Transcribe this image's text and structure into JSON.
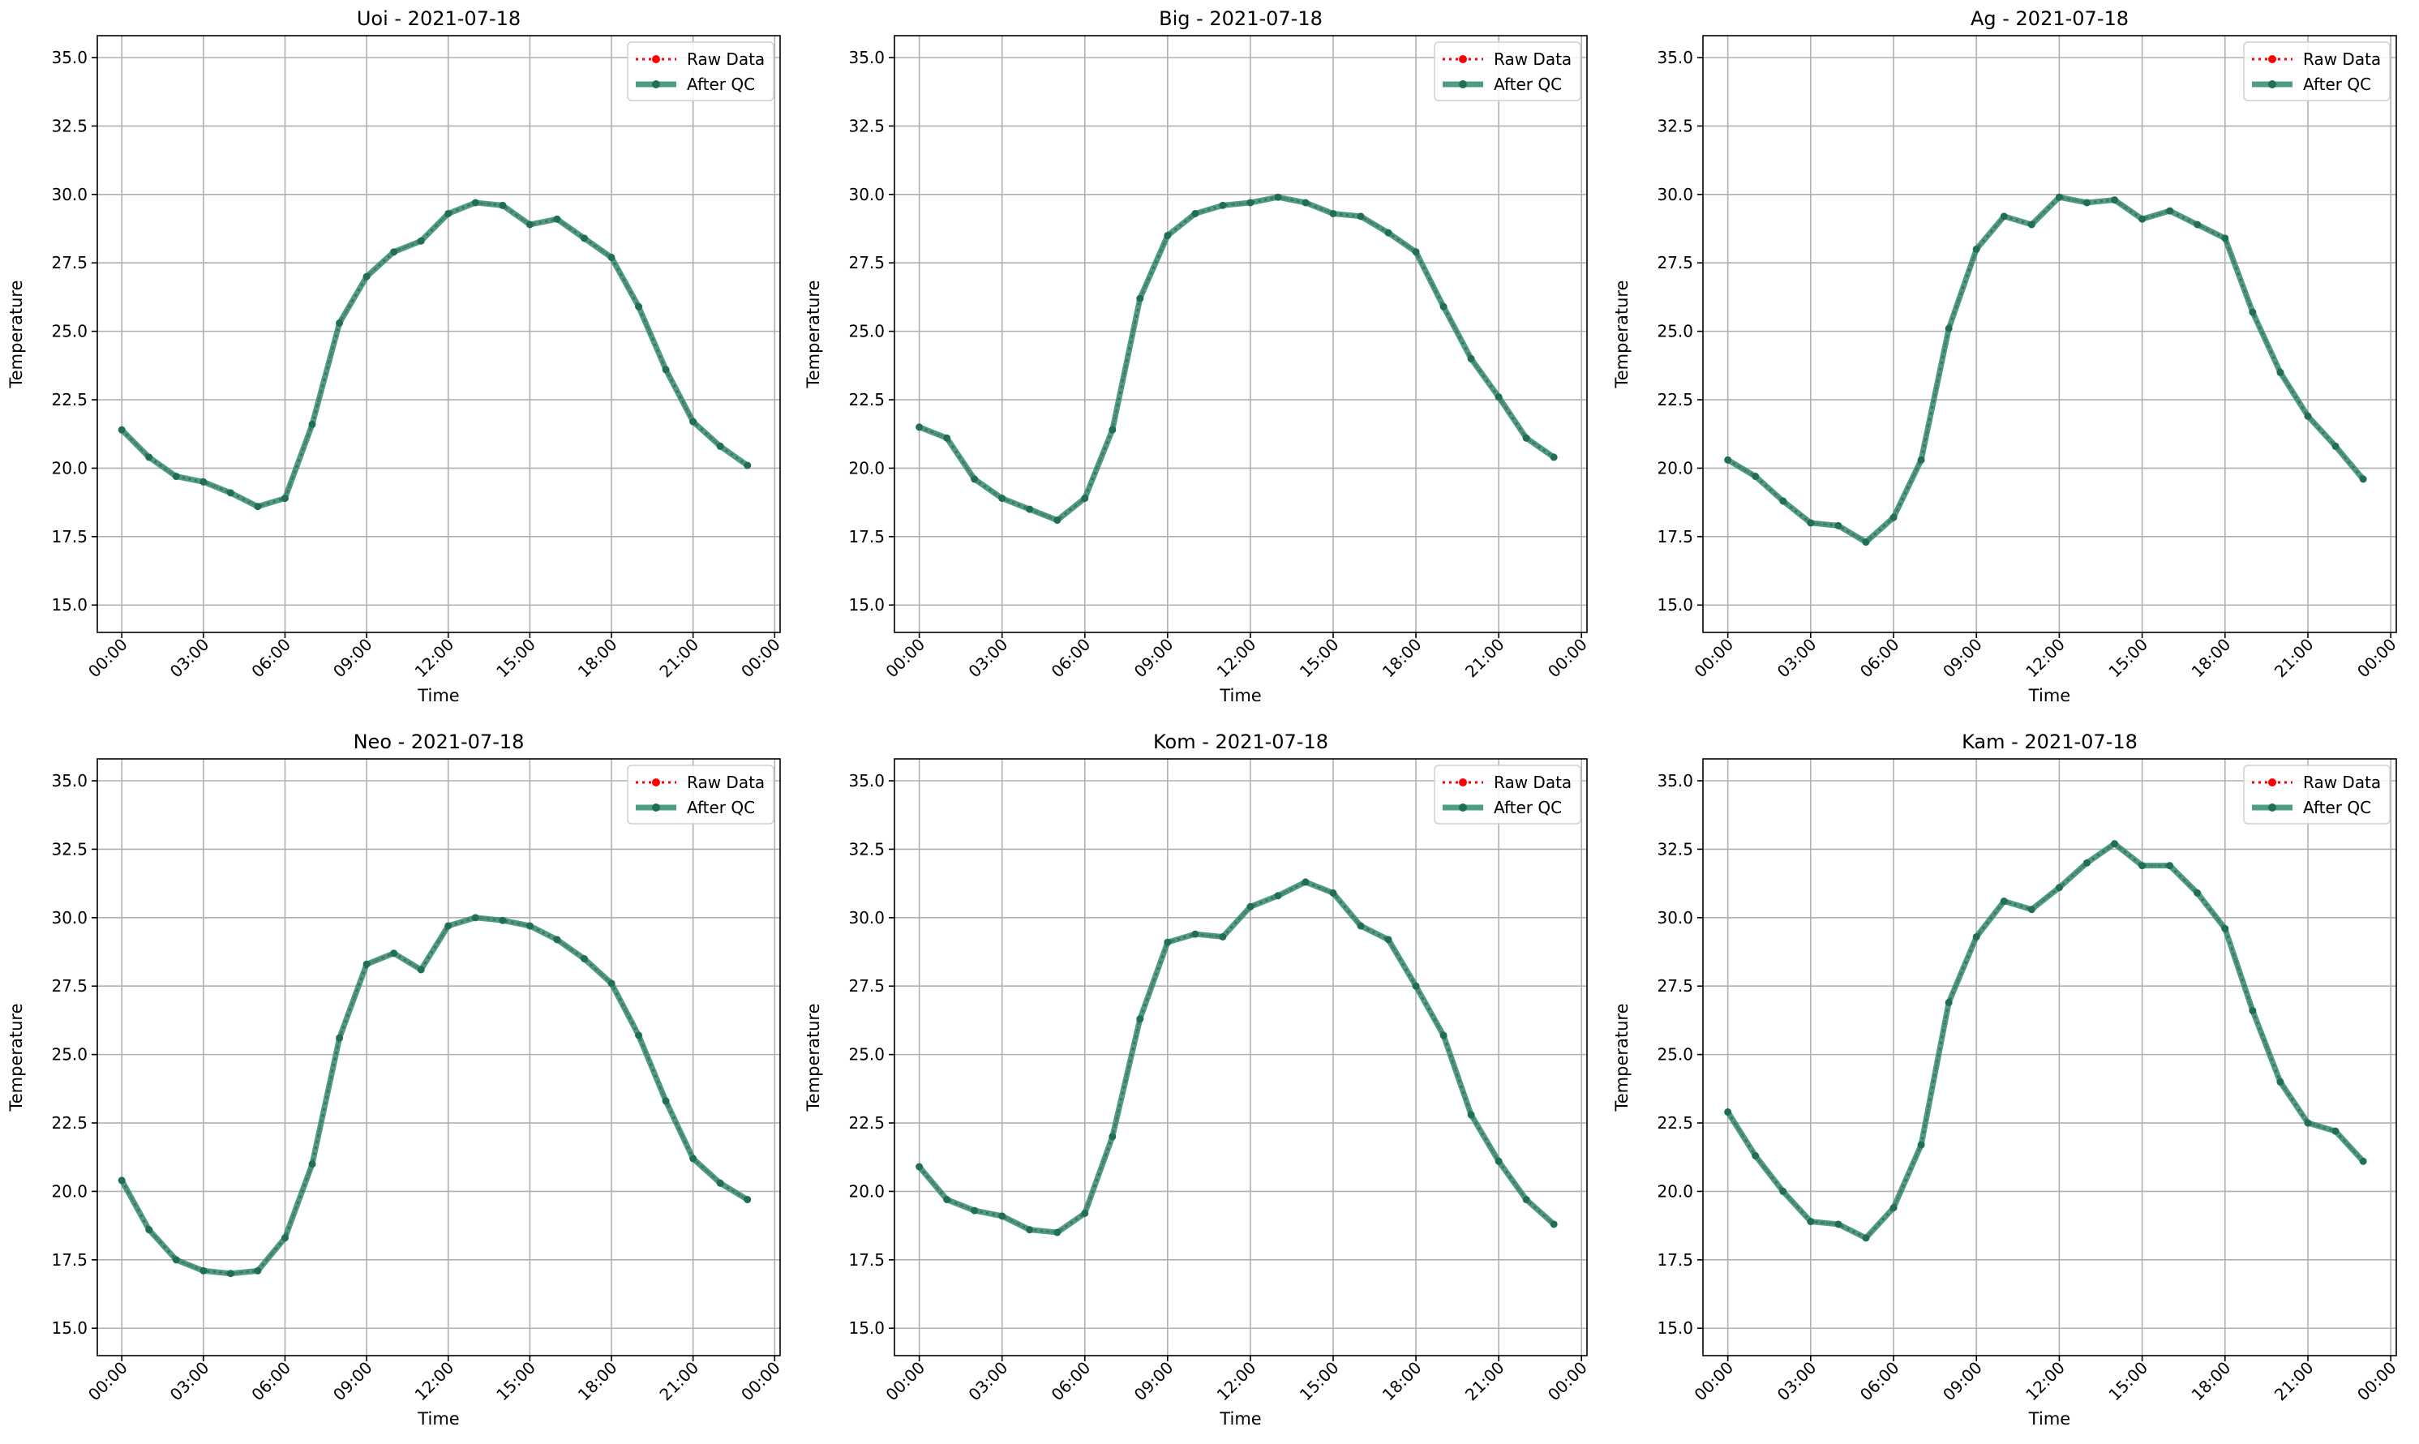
{
  "figure": {
    "legend": {
      "raw_label": "Raw Data",
      "qc_label": "After QC",
      "raw_color": "#ff0000",
      "qc_color": "#2e8b6e",
      "placement": "upper right"
    },
    "grid": true
  },
  "chart_data": [
    {
      "type": "line",
      "title": "Uoi - 2021-07-18",
      "xlabel": "Time",
      "ylabel": "Temperature",
      "x": [
        "00:00",
        "01:00",
        "02:00",
        "03:00",
        "04:00",
        "05:00",
        "06:00",
        "07:00",
        "08:00",
        "09:00",
        "10:00",
        "11:00",
        "12:00",
        "13:00",
        "14:00",
        "15:00",
        "16:00",
        "17:00",
        "18:00",
        "19:00",
        "20:00",
        "21:00",
        "22:00",
        "23:00"
      ],
      "xticks": [
        "00:00",
        "03:00",
        "06:00",
        "09:00",
        "12:00",
        "15:00",
        "18:00",
        "21:00",
        "00:00"
      ],
      "yticks": [
        "15.0",
        "17.5",
        "20.0",
        "22.5",
        "25.0",
        "27.5",
        "30.0",
        "32.5",
        "35.0"
      ],
      "ylim": [
        14.0,
        35.8
      ],
      "series": [
        {
          "name": "Raw Data",
          "values": [
            21.4,
            20.4,
            19.7,
            19.5,
            19.1,
            18.6,
            18.9,
            21.6,
            25.3,
            27.0,
            27.9,
            28.3,
            29.3,
            29.7,
            29.6,
            28.9,
            29.1,
            28.4,
            27.7,
            25.9,
            23.6,
            21.7,
            20.8,
            20.1
          ]
        },
        {
          "name": "After QC",
          "values": [
            21.4,
            20.4,
            19.7,
            19.5,
            19.1,
            18.6,
            18.9,
            21.6,
            25.3,
            27.0,
            27.9,
            28.3,
            29.3,
            29.7,
            29.6,
            28.9,
            29.1,
            28.4,
            27.7,
            25.9,
            23.6,
            21.7,
            20.8,
            20.1
          ]
        }
      ]
    },
    {
      "type": "line",
      "title": "Big - 2021-07-18",
      "xlabel": "Time",
      "ylabel": "Temperature",
      "x": [
        "00:00",
        "01:00",
        "02:00",
        "03:00",
        "04:00",
        "05:00",
        "06:00",
        "07:00",
        "08:00",
        "09:00",
        "10:00",
        "11:00",
        "12:00",
        "13:00",
        "14:00",
        "15:00",
        "16:00",
        "17:00",
        "18:00",
        "19:00",
        "20:00",
        "21:00",
        "22:00",
        "23:00"
      ],
      "xticks": [
        "00:00",
        "03:00",
        "06:00",
        "09:00",
        "12:00",
        "15:00",
        "18:00",
        "21:00",
        "00:00"
      ],
      "yticks": [
        "15.0",
        "17.5",
        "20.0",
        "22.5",
        "25.0",
        "27.5",
        "30.0",
        "32.5",
        "35.0"
      ],
      "ylim": [
        14.0,
        35.8
      ],
      "series": [
        {
          "name": "Raw Data",
          "values": [
            21.5,
            21.1,
            19.6,
            18.9,
            18.5,
            18.1,
            18.9,
            21.4,
            26.2,
            28.5,
            29.3,
            29.6,
            29.7,
            29.9,
            29.7,
            29.3,
            29.2,
            28.6,
            27.9,
            25.9,
            24.0,
            22.6,
            21.1,
            20.4
          ]
        },
        {
          "name": "After QC",
          "values": [
            21.5,
            21.1,
            19.6,
            18.9,
            18.5,
            18.1,
            18.9,
            21.4,
            26.2,
            28.5,
            29.3,
            29.6,
            29.7,
            29.9,
            29.7,
            29.3,
            29.2,
            28.6,
            27.9,
            25.9,
            24.0,
            22.6,
            21.1,
            20.4
          ]
        }
      ]
    },
    {
      "type": "line",
      "title": "Ag - 2021-07-18",
      "xlabel": "Time",
      "ylabel": "Temperature",
      "x": [
        "00:00",
        "01:00",
        "02:00",
        "03:00",
        "04:00",
        "05:00",
        "06:00",
        "07:00",
        "08:00",
        "09:00",
        "10:00",
        "11:00",
        "12:00",
        "13:00",
        "14:00",
        "15:00",
        "16:00",
        "17:00",
        "18:00",
        "19:00",
        "20:00",
        "21:00",
        "22:00",
        "23:00"
      ],
      "xticks": [
        "00:00",
        "03:00",
        "06:00",
        "09:00",
        "12:00",
        "15:00",
        "18:00",
        "21:00",
        "00:00"
      ],
      "yticks": [
        "15.0",
        "17.5",
        "20.0",
        "22.5",
        "25.0",
        "27.5",
        "30.0",
        "32.5",
        "35.0"
      ],
      "ylim": [
        14.0,
        35.8
      ],
      "series": [
        {
          "name": "Raw Data",
          "values": [
            20.3,
            19.7,
            18.8,
            18.0,
            17.9,
            17.3,
            18.2,
            20.3,
            25.1,
            28.0,
            29.2,
            28.9,
            29.9,
            29.7,
            29.8,
            29.1,
            29.4,
            28.9,
            28.4,
            25.7,
            23.5,
            21.9,
            20.8,
            19.6
          ]
        },
        {
          "name": "After QC",
          "values": [
            20.3,
            19.7,
            18.8,
            18.0,
            17.9,
            17.3,
            18.2,
            20.3,
            25.1,
            28.0,
            29.2,
            28.9,
            29.9,
            29.7,
            29.8,
            29.1,
            29.4,
            28.9,
            28.4,
            25.7,
            23.5,
            21.9,
            20.8,
            19.6
          ]
        }
      ]
    },
    {
      "type": "line",
      "title": "Neo - 2021-07-18",
      "xlabel": "Time",
      "ylabel": "Temperature",
      "x": [
        "00:00",
        "01:00",
        "02:00",
        "03:00",
        "04:00",
        "05:00",
        "06:00",
        "07:00",
        "08:00",
        "09:00",
        "10:00",
        "11:00",
        "12:00",
        "13:00",
        "14:00",
        "15:00",
        "16:00",
        "17:00",
        "18:00",
        "19:00",
        "20:00",
        "21:00",
        "22:00",
        "23:00"
      ],
      "xticks": [
        "00:00",
        "03:00",
        "06:00",
        "09:00",
        "12:00",
        "15:00",
        "18:00",
        "21:00",
        "00:00"
      ],
      "yticks": [
        "15.0",
        "17.5",
        "20.0",
        "22.5",
        "25.0",
        "27.5",
        "30.0",
        "32.5",
        "35.0"
      ],
      "ylim": [
        14.0,
        35.8
      ],
      "series": [
        {
          "name": "Raw Data",
          "values": [
            20.4,
            18.6,
            17.5,
            17.1,
            17.0,
            17.1,
            18.3,
            21.0,
            25.6,
            28.3,
            28.7,
            28.1,
            29.7,
            30.0,
            29.9,
            29.7,
            29.2,
            28.5,
            27.6,
            25.7,
            23.3,
            21.2,
            20.3,
            19.7
          ]
        },
        {
          "name": "After QC",
          "values": [
            20.4,
            18.6,
            17.5,
            17.1,
            17.0,
            17.1,
            18.3,
            21.0,
            25.6,
            28.3,
            28.7,
            28.1,
            29.7,
            30.0,
            29.9,
            29.7,
            29.2,
            28.5,
            27.6,
            25.7,
            23.3,
            21.2,
            20.3,
            19.7
          ]
        }
      ]
    },
    {
      "type": "line",
      "title": "Kom - 2021-07-18",
      "xlabel": "Time",
      "ylabel": "Temperature",
      "x": [
        "00:00",
        "01:00",
        "02:00",
        "03:00",
        "04:00",
        "05:00",
        "06:00",
        "07:00",
        "08:00",
        "09:00",
        "10:00",
        "11:00",
        "12:00",
        "13:00",
        "14:00",
        "15:00",
        "16:00",
        "17:00",
        "18:00",
        "19:00",
        "20:00",
        "21:00",
        "22:00",
        "23:00"
      ],
      "xticks": [
        "00:00",
        "03:00",
        "06:00",
        "09:00",
        "12:00",
        "15:00",
        "18:00",
        "21:00",
        "00:00"
      ],
      "yticks": [
        "15.0",
        "17.5",
        "20.0",
        "22.5",
        "25.0",
        "27.5",
        "30.0",
        "32.5",
        "35.0"
      ],
      "ylim": [
        14.0,
        35.8
      ],
      "series": [
        {
          "name": "Raw Data",
          "values": [
            20.9,
            19.7,
            19.3,
            19.1,
            18.6,
            18.5,
            19.2,
            22.0,
            26.3,
            29.1,
            29.4,
            29.3,
            30.4,
            30.8,
            31.3,
            30.9,
            29.7,
            29.2,
            27.5,
            25.7,
            22.8,
            21.1,
            19.7,
            18.8
          ]
        },
        {
          "name": "After QC",
          "values": [
            20.9,
            19.7,
            19.3,
            19.1,
            18.6,
            18.5,
            19.2,
            22.0,
            26.3,
            29.1,
            29.4,
            29.3,
            30.4,
            30.8,
            31.3,
            30.9,
            29.7,
            29.2,
            27.5,
            25.7,
            22.8,
            21.1,
            19.7,
            18.8
          ]
        }
      ]
    },
    {
      "type": "line",
      "title": "Kam - 2021-07-18",
      "xlabel": "Time",
      "ylabel": "Temperature",
      "x": [
        "00:00",
        "01:00",
        "02:00",
        "03:00",
        "04:00",
        "05:00",
        "06:00",
        "07:00",
        "08:00",
        "09:00",
        "10:00",
        "11:00",
        "12:00",
        "13:00",
        "14:00",
        "15:00",
        "16:00",
        "17:00",
        "18:00",
        "19:00",
        "20:00",
        "21:00",
        "22:00",
        "23:00"
      ],
      "xticks": [
        "00:00",
        "03:00",
        "06:00",
        "09:00",
        "12:00",
        "15:00",
        "18:00",
        "21:00",
        "00:00"
      ],
      "yticks": [
        "15.0",
        "17.5",
        "20.0",
        "22.5",
        "25.0",
        "27.5",
        "30.0",
        "32.5",
        "35.0"
      ],
      "ylim": [
        14.0,
        35.8
      ],
      "series": [
        {
          "name": "Raw Data",
          "values": [
            22.9,
            21.3,
            20.0,
            18.9,
            18.8,
            18.3,
            19.4,
            21.7,
            26.9,
            29.3,
            30.6,
            30.3,
            31.1,
            32.0,
            32.7,
            31.9,
            31.9,
            30.9,
            29.6,
            26.6,
            24.0,
            22.5,
            22.2,
            21.1
          ]
        },
        {
          "name": "After QC",
          "values": [
            22.9,
            21.3,
            20.0,
            18.9,
            18.8,
            18.3,
            19.4,
            21.7,
            26.9,
            29.3,
            30.6,
            30.3,
            31.1,
            32.0,
            32.7,
            31.9,
            31.9,
            30.9,
            29.6,
            26.6,
            24.0,
            22.5,
            22.2,
            21.1
          ]
        }
      ]
    }
  ]
}
